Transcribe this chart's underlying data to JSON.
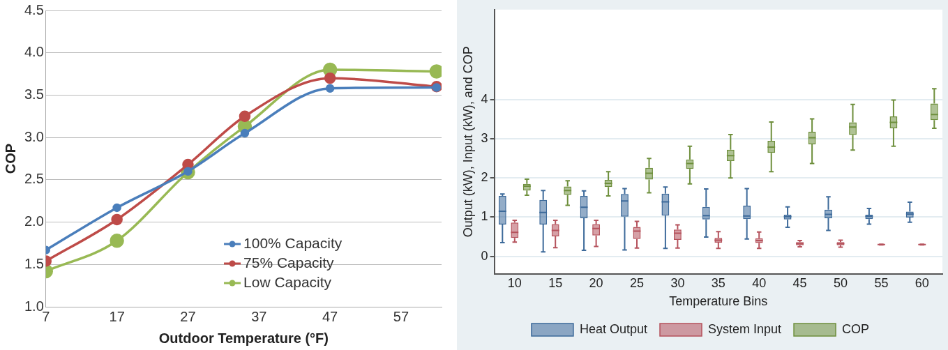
{
  "chart_data": [
    {
      "type": "line",
      "xlabel": "Outdoor Temperature (°F)",
      "ylabel": "COP",
      "x": [
        7,
        17,
        27,
        35,
        47,
        62
      ],
      "series": [
        {
          "name": "100% Capacity",
          "color": "#4a7ebb",
          "values": [
            1.67,
            2.17,
            2.6,
            3.05,
            3.58,
            3.59
          ]
        },
        {
          "name": "75% Capacity",
          "color": "#be4b48",
          "values": [
            1.54,
            2.03,
            2.68,
            3.25,
            3.7,
            3.6
          ]
        },
        {
          "name": "Low Capacity",
          "color": "#98b954",
          "values": [
            1.42,
            1.78,
            2.59,
            3.13,
            3.8,
            3.78
          ]
        }
      ],
      "xlim": [
        7,
        62.7
      ],
      "xticks": [
        7,
        17,
        27,
        37,
        47,
        57
      ],
      "ylim": [
        1,
        4.5
      ],
      "yticks": [
        {
          "value": 1,
          "label": "1.0"
        },
        1.5,
        {
          "value": 2,
          "label": "2.0"
        },
        2.5,
        {
          "value": 3,
          "label": "3.0"
        },
        3.5,
        {
          "value": 4,
          "label": "4.0"
        },
        4.5
      ],
      "grid": "y",
      "legend": "bottom right",
      "marker": "circle",
      "line_style": "solid"
    },
    {
      "type": "box",
      "xlabel": "Temperature Bins",
      "ylabel": "Output (kW), Input (kW), and COP",
      "categories": [
        "10",
        "15",
        "20",
        "25",
        "30",
        "35",
        "40",
        "45",
        "50",
        "55",
        "60"
      ],
      "series": [
        {
          "name": "Heat Output",
          "color": "#3d6a9a",
          "boxes": [
            {
              "low": 0.35,
              "q1": 0.81,
              "median": 1.15,
              "q3": 1.54,
              "high": 1.59
            },
            {
              "low": 0.11,
              "q1": 0.81,
              "median": 1.12,
              "q3": 1.44,
              "high": 1.68
            },
            {
              "low": 0.15,
              "q1": 0.97,
              "median": 1.25,
              "q3": 1.54,
              "high": 1.67
            },
            {
              "low": 0.16,
              "q1": 1.01,
              "median": 1.41,
              "q3": 1.59,
              "high": 1.73
            },
            {
              "low": 0.2,
              "q1": 1.04,
              "median": 1.39,
              "q3": 1.6,
              "high": 1.77
            },
            {
              "low": 0.49,
              "q1": 0.94,
              "median": 1.04,
              "q3": 1.26,
              "high": 1.72
            },
            {
              "low": 0.44,
              "q1": 0.95,
              "median": 1.03,
              "q3": 1.29,
              "high": 1.73
            },
            {
              "low": 0.74,
              "q1": 0.94,
              "median": 1.01,
              "q3": 1.06,
              "high": 1.26
            },
            {
              "low": 0.66,
              "q1": 0.97,
              "median": 1.07,
              "q3": 1.19,
              "high": 1.52
            },
            {
              "low": 0.82,
              "q1": 0.95,
              "median": 1.02,
              "q3": 1.06,
              "high": 1.22
            },
            {
              "low": 0.87,
              "q1": 0.99,
              "median": 1.08,
              "q3": 1.14,
              "high": 1.38
            }
          ]
        },
        {
          "name": "System Input",
          "color": "#b5525c",
          "boxes": [
            {
              "low": 0.36,
              "q1": 0.47,
              "median": 0.61,
              "q3": 0.86,
              "high": 0.92
            },
            {
              "low": 0.22,
              "q1": 0.51,
              "median": 0.66,
              "q3": 0.82,
              "high": 0.92
            },
            {
              "low": 0.25,
              "q1": 0.53,
              "median": 0.71,
              "q3": 0.82,
              "high": 0.92
            },
            {
              "low": 0.21,
              "q1": 0.44,
              "median": 0.64,
              "q3": 0.75,
              "high": 0.89
            },
            {
              "low": 0.21,
              "q1": 0.42,
              "median": 0.59,
              "q3": 0.68,
              "high": 0.8
            },
            {
              "low": 0.2,
              "q1": 0.35,
              "median": 0.41,
              "q3": 0.47,
              "high": 0.63
            },
            {
              "low": 0.2,
              "q1": 0.34,
              "median": 0.4,
              "q3": 0.46,
              "high": 0.62
            },
            {
              "low": 0.24,
              "q1": 0.28,
              "median": 0.32,
              "q3": 0.36,
              "high": 0.4
            },
            {
              "low": 0.23,
              "q1": 0.28,
              "median": 0.32,
              "q3": 0.36,
              "high": 0.41
            },
            {
              "low": 0.29,
              "q1": 0.29,
              "median": 0.3,
              "q3": 0.31,
              "high": 0.31
            },
            {
              "low": 0.29,
              "q1": 0.29,
              "median": 0.3,
              "q3": 0.31,
              "high": 0.31
            }
          ]
        },
        {
          "name": "COP",
          "color": "#6e8f3c",
          "boxes": [
            {
              "low": 1.56,
              "q1": 1.68,
              "median": 1.79,
              "q3": 1.85,
              "high": 1.97
            },
            {
              "low": 1.3,
              "q1": 1.57,
              "median": 1.68,
              "q3": 1.78,
              "high": 1.93
            },
            {
              "low": 1.54,
              "q1": 1.77,
              "median": 1.86,
              "q3": 1.95,
              "high": 2.16
            },
            {
              "low": 1.62,
              "q1": 1.96,
              "median": 2.12,
              "q3": 2.26,
              "high": 2.5
            },
            {
              "low": 1.85,
              "q1": 2.23,
              "median": 2.37,
              "q3": 2.47,
              "high": 2.81
            },
            {
              "low": 2.0,
              "q1": 2.43,
              "median": 2.57,
              "q3": 2.72,
              "high": 3.11
            },
            {
              "low": 2.16,
              "q1": 2.64,
              "median": 2.79,
              "q3": 2.95,
              "high": 3.43
            },
            {
              "low": 2.37,
              "q1": 2.86,
              "median": 3.03,
              "q3": 3.18,
              "high": 3.51
            },
            {
              "low": 2.71,
              "q1": 3.1,
              "median": 3.3,
              "q3": 3.42,
              "high": 3.88
            },
            {
              "low": 2.81,
              "q1": 3.27,
              "median": 3.42,
              "q3": 3.57,
              "high": 3.99
            },
            {
              "low": 3.27,
              "q1": 3.48,
              "median": 3.62,
              "q3": 3.9,
              "high": 4.28
            }
          ]
        }
      ],
      "ylim": [
        -0.45,
        6.3
      ],
      "yticks": [
        0,
        1,
        2,
        3,
        4
      ],
      "grid": "y",
      "legend": "bottom"
    }
  ]
}
